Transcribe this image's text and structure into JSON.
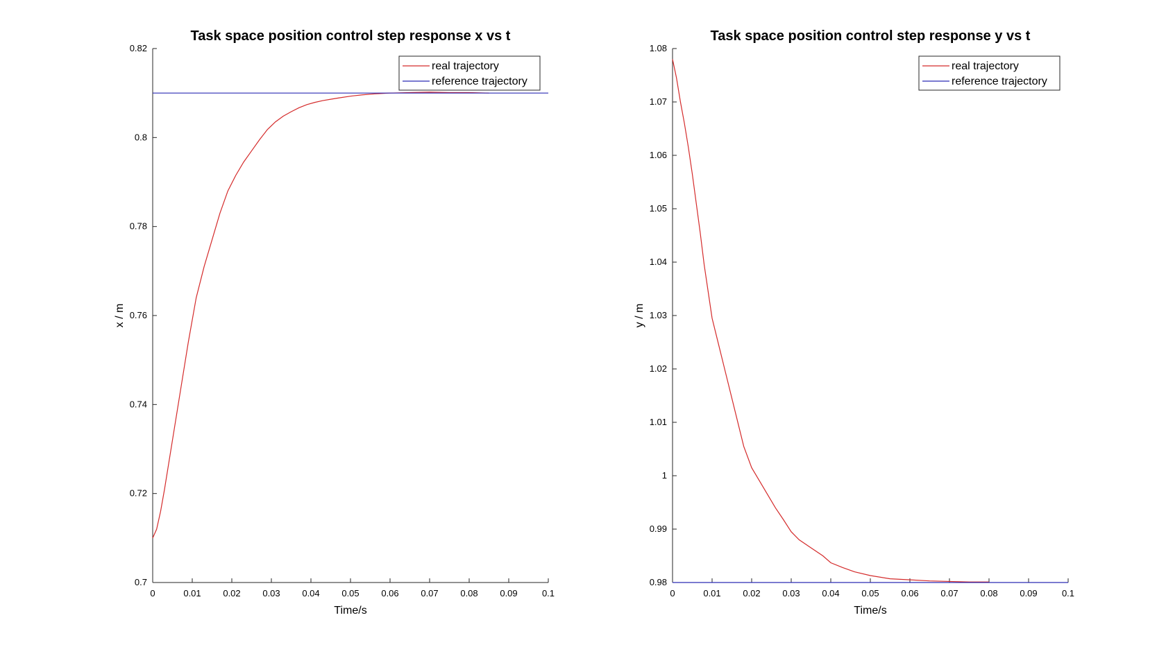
{
  "chart_data": [
    {
      "type": "line",
      "title": "Task space position control step response x vs t",
      "xlabel": "Time/s",
      "ylabel": "x / m",
      "xlim": [
        0,
        0.1
      ],
      "ylim": [
        0.7,
        0.82
      ],
      "xticks": [
        0,
        0.01,
        0.02,
        0.03,
        0.04,
        0.05,
        0.06,
        0.07,
        0.08,
        0.09,
        0.1
      ],
      "xtick_labels": [
        "0",
        "0.01",
        "0.02",
        "0.03",
        "0.04",
        "0.05",
        "0.06",
        "0.07",
        "0.08",
        "0.09",
        "0.1"
      ],
      "yticks": [
        0.7,
        0.72,
        0.74,
        0.76,
        0.78,
        0.8,
        0.82
      ],
      "ytick_labels": [
        "0.7",
        "0.72",
        "0.74",
        "0.76",
        "0.78",
        "0.8",
        "0.82"
      ],
      "grid": false,
      "legend_position": "top-right",
      "series": [
        {
          "name": "real trajectory",
          "color": "#d42a2a",
          "x": [
            0,
            0.001,
            0.002,
            0.003,
            0.005,
            0.007,
            0.009,
            0.011,
            0.013,
            0.015,
            0.017,
            0.019,
            0.021,
            0.023,
            0.025,
            0.027,
            0.029,
            0.031,
            0.033,
            0.035,
            0.037,
            0.039,
            0.041,
            0.043,
            0.045,
            0.047,
            0.05,
            0.053,
            0.056,
            0.06,
            0.065,
            0.07,
            0.075,
            0.08,
            0.085
          ],
          "y": [
            0.71,
            0.712,
            0.716,
            0.721,
            0.732,
            0.743,
            0.754,
            0.764,
            0.771,
            0.777,
            0.783,
            0.788,
            0.7915,
            0.7945,
            0.797,
            0.7995,
            0.8018,
            0.8035,
            0.8048,
            0.8058,
            0.8067,
            0.8074,
            0.8079,
            0.8083,
            0.8086,
            0.8089,
            0.8093,
            0.8096,
            0.8098,
            0.81,
            0.8101,
            0.8102,
            0.8101,
            0.8101,
            0.81
          ]
        },
        {
          "name": "reference trajectory",
          "color": "#2a2ab4",
          "x": [
            0,
            0.1
          ],
          "y": [
            0.81,
            0.81
          ]
        }
      ]
    },
    {
      "type": "line",
      "title": "Task space position control step response y vs t",
      "xlabel": "Time/s",
      "ylabel": "y / m",
      "xlim": [
        0,
        0.1
      ],
      "ylim": [
        0.98,
        1.08
      ],
      "xticks": [
        0,
        0.01,
        0.02,
        0.03,
        0.04,
        0.05,
        0.06,
        0.07,
        0.08,
        0.09,
        0.1
      ],
      "xtick_labels": [
        "0",
        "0.01",
        "0.02",
        "0.03",
        "0.04",
        "0.05",
        "0.06",
        "0.07",
        "0.08",
        "0.09",
        "0.1"
      ],
      "yticks": [
        0.98,
        0.99,
        1.0,
        1.01,
        1.02,
        1.03,
        1.04,
        1.05,
        1.06,
        1.07,
        1.08
      ],
      "ytick_labels": [
        "0.98",
        "0.99",
        "1",
        "1.01",
        "1.02",
        "1.03",
        "1.04",
        "1.05",
        "1.06",
        "1.07",
        "1.08"
      ],
      "grid": false,
      "legend_position": "top-right",
      "series": [
        {
          "name": "real trajectory",
          "color": "#d42a2a",
          "x": [
            0,
            0.001,
            0.002,
            0.003,
            0.004,
            0.005,
            0.006,
            0.007,
            0.008,
            0.009,
            0.01,
            0.012,
            0.014,
            0.016,
            0.018,
            0.02,
            0.022,
            0.024,
            0.026,
            0.028,
            0.03,
            0.032,
            0.035,
            0.038,
            0.04,
            0.043,
            0.046,
            0.05,
            0.055,
            0.06,
            0.065,
            0.07,
            0.075,
            0.08
          ],
          "y": [
            1.078,
            1.0745,
            1.07,
            1.066,
            1.0615,
            1.0565,
            1.051,
            1.0455,
            1.0395,
            1.0345,
            1.0295,
            1.0235,
            1.0175,
            1.0115,
            1.0055,
            1.0015,
            0.999,
            0.9965,
            0.994,
            0.9918,
            0.9895,
            0.988,
            0.9865,
            0.985,
            0.9837,
            0.9828,
            0.982,
            0.9813,
            0.9807,
            0.9805,
            0.9803,
            0.9802,
            0.9801,
            0.9801
          ]
        },
        {
          "name": "reference trajectory",
          "color": "#2a2ab4",
          "x": [
            0,
            0.1
          ],
          "y": [
            0.98,
            0.98
          ]
        }
      ]
    }
  ]
}
